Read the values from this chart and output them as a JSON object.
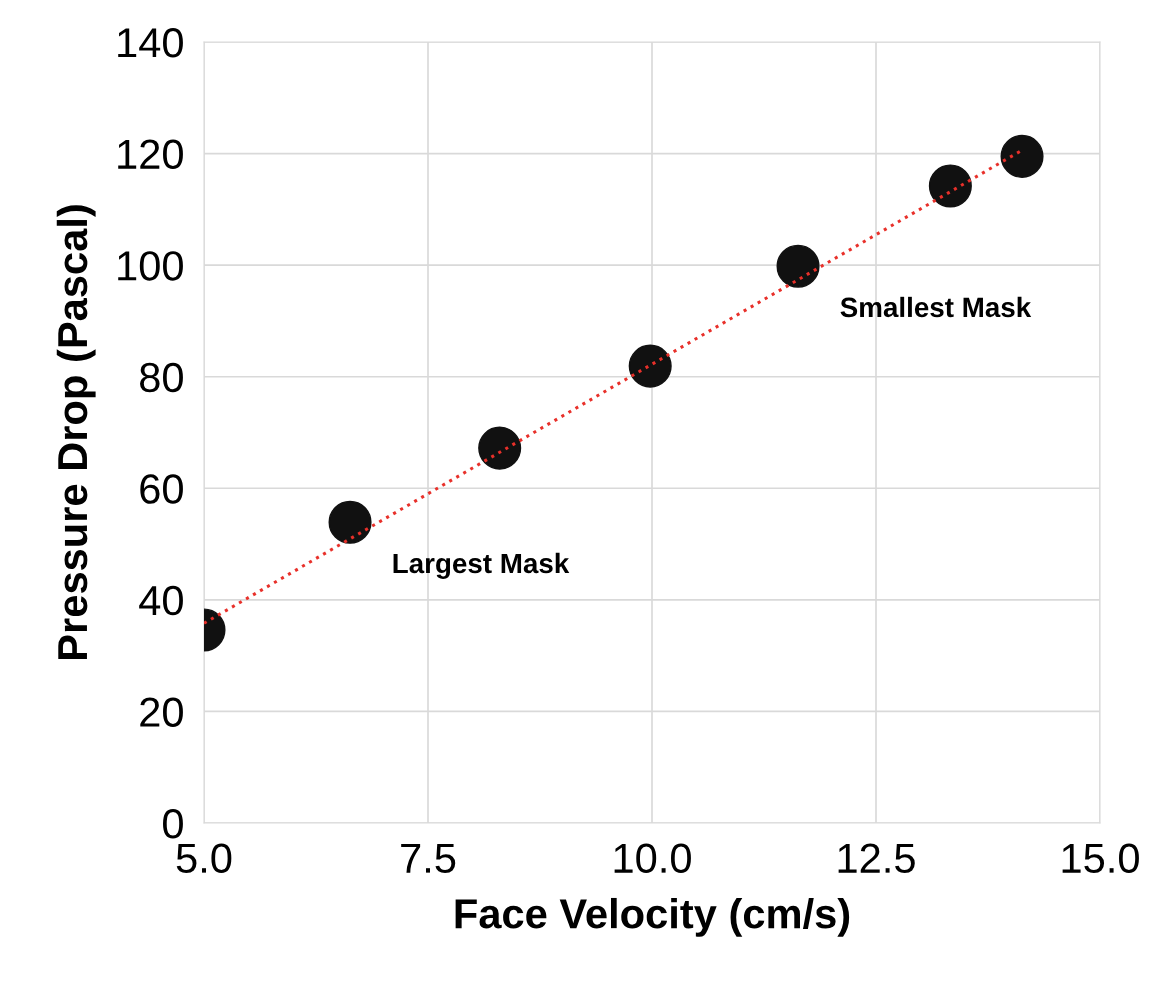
{
  "chart_data": {
    "type": "scatter",
    "xlabel": "Face Velocity (cm/s)",
    "ylabel": "Pressure Drop (Pascal)",
    "series": [
      {
        "type": "scatter",
        "color": "#111111",
        "marker": "circle",
        "x": [
          5.0,
          6.63,
          8.3,
          9.98,
          11.63,
          13.33,
          14.13
        ],
        "values": [
          34.6,
          53.9,
          67.2,
          81.9,
          99.8,
          114.2,
          119.5
        ]
      },
      {
        "type": "line",
        "color": "#e8302a",
        "line_style": "dotted",
        "marker": "none",
        "x": [
          5.0,
          14.13
        ],
        "values": [
          35.8,
          120.6
        ]
      }
    ],
    "annotations": [
      {
        "text": "Largest Mask",
        "x": 6.63,
        "y": 53.9
      },
      {
        "text": "Smallest Mask",
        "x": 11.63,
        "y": 99.8
      }
    ],
    "xlim": [
      5.0,
      15.0
    ],
    "xticks": [
      {
        "value": 5,
        "label": "5.0"
      },
      {
        "value": 7.5,
        "label": "7.5"
      },
      {
        "value": 10,
        "label": "10.0"
      },
      {
        "value": 12.5,
        "label": "12.5"
      },
      {
        "value": 15,
        "label": "15.0"
      }
    ],
    "ylim": [
      0,
      140
    ],
    "yticks": [
      0,
      20,
      40,
      60,
      80,
      100,
      120,
      140
    ],
    "grid": true,
    "legend": false
  }
}
